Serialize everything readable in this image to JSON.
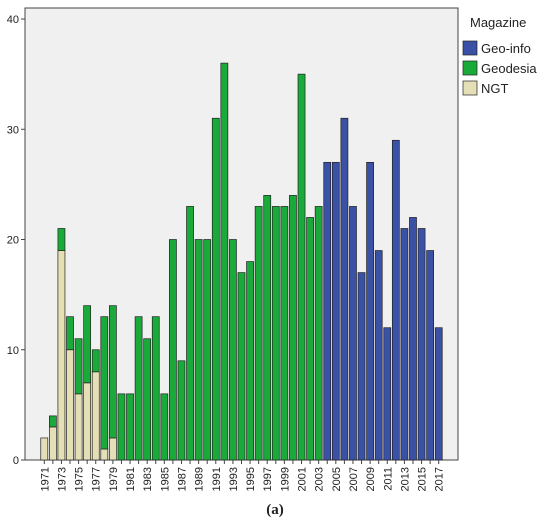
{
  "chart_data": {
    "type": "bar",
    "stacked": true,
    "x": [
      1971,
      1972,
      1973,
      1974,
      1975,
      1976,
      1977,
      1978,
      1979,
      1980,
      1981,
      1982,
      1983,
      1984,
      1985,
      1986,
      1987,
      1988,
      1989,
      1990,
      1991,
      1992,
      1993,
      1994,
      1995,
      1996,
      1997,
      1998,
      1999,
      2000,
      2001,
      2002,
      2003,
      2004,
      2005,
      2006,
      2007,
      2008,
      2009,
      2010,
      2011,
      2012,
      2013,
      2014,
      2015,
      2016,
      2017
    ],
    "x_tick_labels": [
      "1971",
      "1973",
      "1975",
      "1977",
      "1979",
      "1981",
      "1983",
      "1985",
      "1987",
      "1989",
      "1991",
      "1993",
      "1995",
      "1997",
      "1999",
      "2001",
      "2003",
      "2005",
      "2007",
      "2009",
      "2011",
      "2013",
      "2015",
      "2017"
    ],
    "series": [
      {
        "name": "NGT",
        "color": "#e5dfb6",
        "values": [
          2,
          3,
          19,
          10,
          6,
          7,
          8,
          1,
          2,
          0,
          0,
          0,
          0,
          0,
          0,
          0,
          0,
          0,
          0,
          0,
          0,
          0,
          0,
          0,
          0,
          0,
          0,
          0,
          0,
          0,
          0,
          0,
          0,
          0,
          0,
          0,
          0,
          0,
          0,
          0,
          0,
          0,
          0,
          0,
          0,
          0,
          0
        ]
      },
      {
        "name": "Geodesia",
        "color": "#1aaa3a",
        "values": [
          0,
          1,
          2,
          3,
          5,
          7,
          2,
          12,
          12,
          6,
          6,
          13,
          11,
          13,
          6,
          20,
          9,
          23,
          20,
          20,
          31,
          36,
          20,
          17,
          18,
          23,
          24,
          23,
          23,
          24,
          35,
          22,
          23,
          0,
          0,
          0,
          0,
          0,
          0,
          0,
          0,
          0,
          0,
          0,
          0,
          0,
          0
        ]
      },
      {
        "name": "Geo-info",
        "color": "#3a51a5",
        "values": [
          0,
          0,
          0,
          0,
          0,
          0,
          0,
          0,
          0,
          0,
          0,
          0,
          0,
          0,
          0,
          0,
          0,
          0,
          0,
          0,
          0,
          0,
          0,
          0,
          0,
          0,
          0,
          0,
          0,
          0,
          0,
          0,
          0,
          27,
          27,
          31,
          23,
          17,
          27,
          19,
          12,
          29,
          21,
          22,
          21,
          19,
          12
        ]
      }
    ],
    "y_ticks": [
      0,
      10,
      20,
      30,
      40
    ],
    "ylim": [
      0,
      41
    ],
    "legend": {
      "title": "Magazine",
      "placement": "right",
      "entries": [
        "Geo-info",
        "Geodesia",
        "NGT"
      ]
    },
    "grid": false,
    "plot_background": "#f0f0f0",
    "caption": "(a)"
  }
}
